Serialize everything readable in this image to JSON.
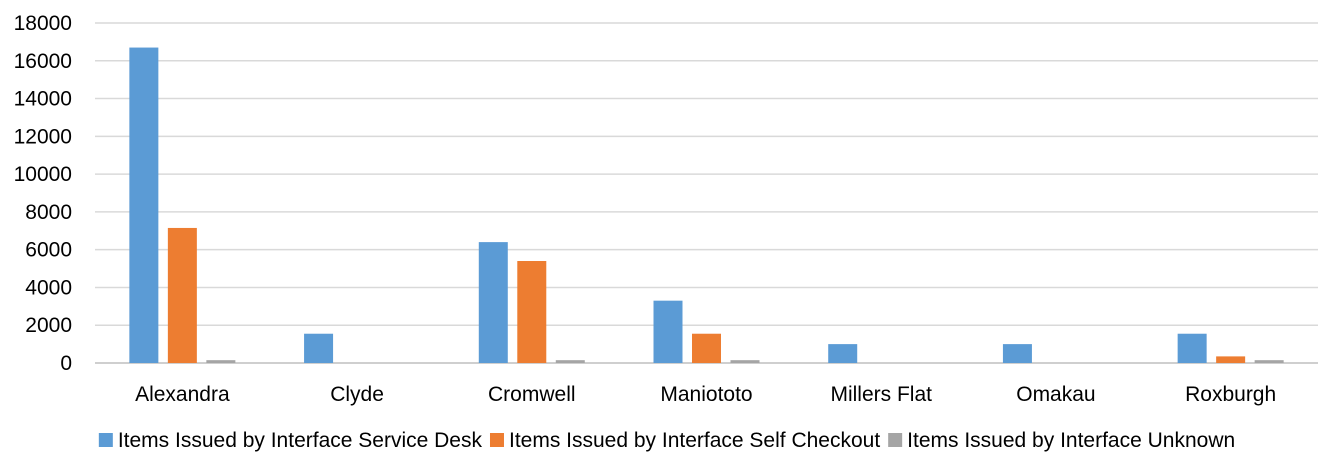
{
  "chart_data": {
    "type": "bar",
    "title": "",
    "xlabel": "",
    "ylabel": "",
    "ylim": [
      0,
      18000
    ],
    "yticks": [
      0,
      2000,
      4000,
      6000,
      8000,
      10000,
      12000,
      14000,
      16000,
      18000
    ],
    "ytick_labels": [
      "0",
      "2000",
      "4000",
      "6000",
      "8000",
      "10000",
      "12000",
      "14000",
      "16000",
      "18000"
    ],
    "grid": true,
    "legend_position": "bottom",
    "categories": [
      "Alexandra",
      "Clyde",
      "Cromwell",
      "Maniototo",
      "Millers Flat",
      "Omakau",
      "Roxburgh"
    ],
    "series": [
      {
        "name": "Items Issued by Interface Service Desk",
        "color": "#5b9bd5",
        "values": [
          16700,
          1550,
          6400,
          3300,
          1000,
          1000,
          1550
        ]
      },
      {
        "name": "Items Issued by Interface Self Checkout",
        "color": "#ed7d31",
        "values": [
          7150,
          0,
          5400,
          1550,
          0,
          0,
          350
        ]
      },
      {
        "name": "Items Issued by Interface Unknown",
        "color": "#a5a5a5",
        "values": [
          150,
          0,
          150,
          150,
          0,
          0,
          150
        ]
      }
    ]
  }
}
